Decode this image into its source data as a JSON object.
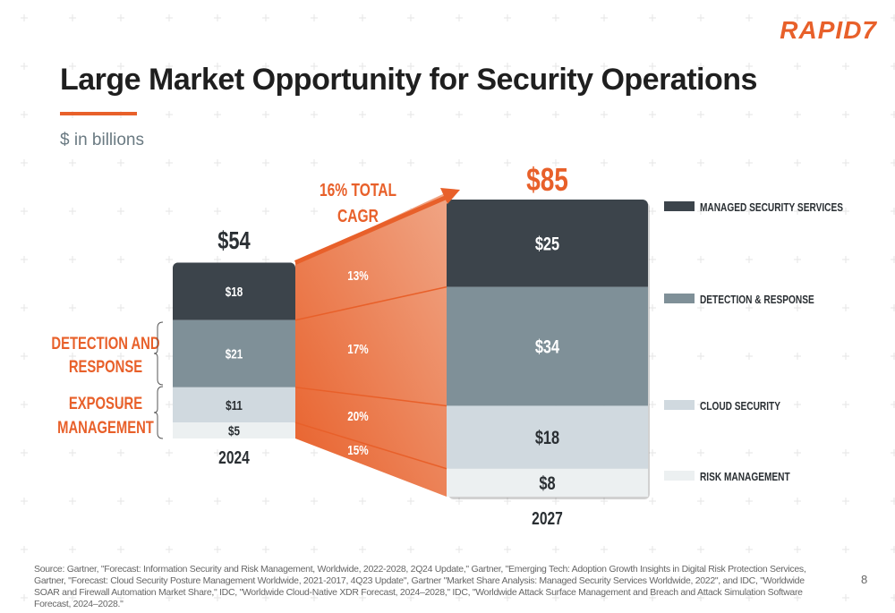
{
  "logo": "RAPID7",
  "title": "Large Market Opportunity for Security Operations",
  "subtitle": "$ in billions",
  "page_number": "8",
  "source": "Source: Gartner, \"Forecast: Information Security and Risk Management, Worldwide, 2022-2028, 2Q24 Update,\" Gartner, \"Emerging Tech: Adoption Growth Insights in Digital Risk Protection Services, Gartner, \"Forecast: Cloud Security Posture Management Worldwide, 2021-2017, 4Q23 Update\", Gartner \"Market Share Analysis: Managed Security Services Worldwide, 2022\", and IDC, \"Worldwide SOAR and Firewall Automation Market Share,\" IDC, \"Worldwide Cloud-Native XDR Forecast, 2024–2028,\" IDC, \"Worldwide Attack Surface Management and Breach and Attack Simulation Software Forecast, 2024–2028.\"",
  "colors": {
    "accent": "#e8602a",
    "managed": "#3c444b",
    "detection": "#7f9098",
    "cloud": "#d0d9df",
    "risk": "#ecf0f1"
  },
  "chart_data": {
    "type": "bar",
    "stacked": true,
    "categories": [
      "2024",
      "2027"
    ],
    "totals": [
      "$54",
      "$85"
    ],
    "series": [
      {
        "name": "MANAGED SECURITY SERVICES",
        "values": [
          18,
          25
        ],
        "labels": [
          "$18",
          "$25"
        ],
        "cagr": "13%"
      },
      {
        "name": "DETECTION & RESPONSE",
        "values": [
          21,
          34
        ],
        "labels": [
          "$21",
          "$34"
        ],
        "cagr": "17%"
      },
      {
        "name": "CLOUD SECURITY",
        "values": [
          11,
          18
        ],
        "labels": [
          "$11",
          "$18"
        ],
        "cagr": "20%"
      },
      {
        "name": "RISK MANAGEMENT",
        "values": [
          5,
          8
        ],
        "labels": [
          "$5",
          "$8"
        ],
        "cagr": "15%"
      }
    ],
    "annotation": [
      "16% TOTAL",
      "CAGR"
    ],
    "groups": [
      {
        "label": [
          "DETECTION AND",
          "RESPONSE"
        ]
      },
      {
        "label": [
          "EXPOSURE",
          "MANAGEMENT"
        ]
      }
    ],
    "legend": "right"
  }
}
